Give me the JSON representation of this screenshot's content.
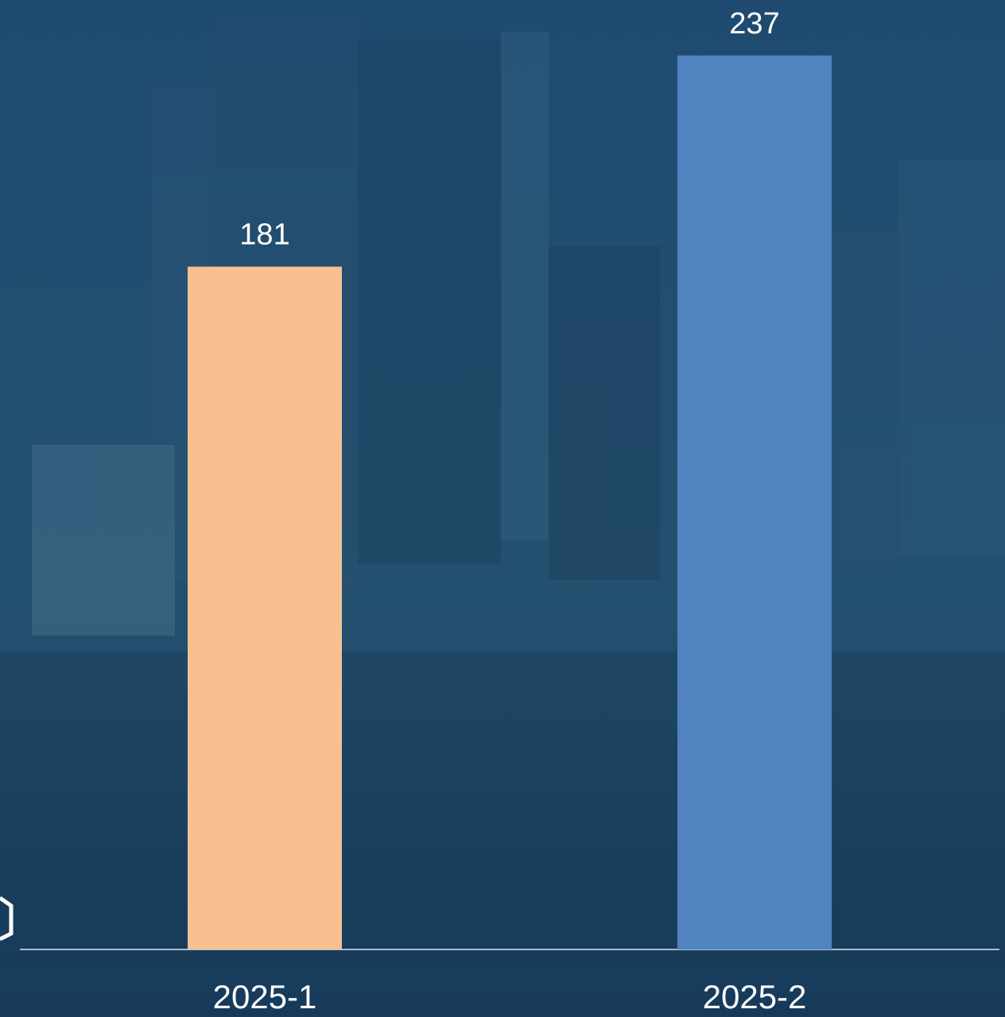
{
  "chart_data": {
    "type": "bar",
    "categories": [
      "2025-1",
      "2025-2"
    ],
    "values": [
      181,
      237
    ],
    "colors": [
      "#f8c090",
      "#5083c0"
    ],
    "ylim": [
      0,
      250
    ]
  }
}
